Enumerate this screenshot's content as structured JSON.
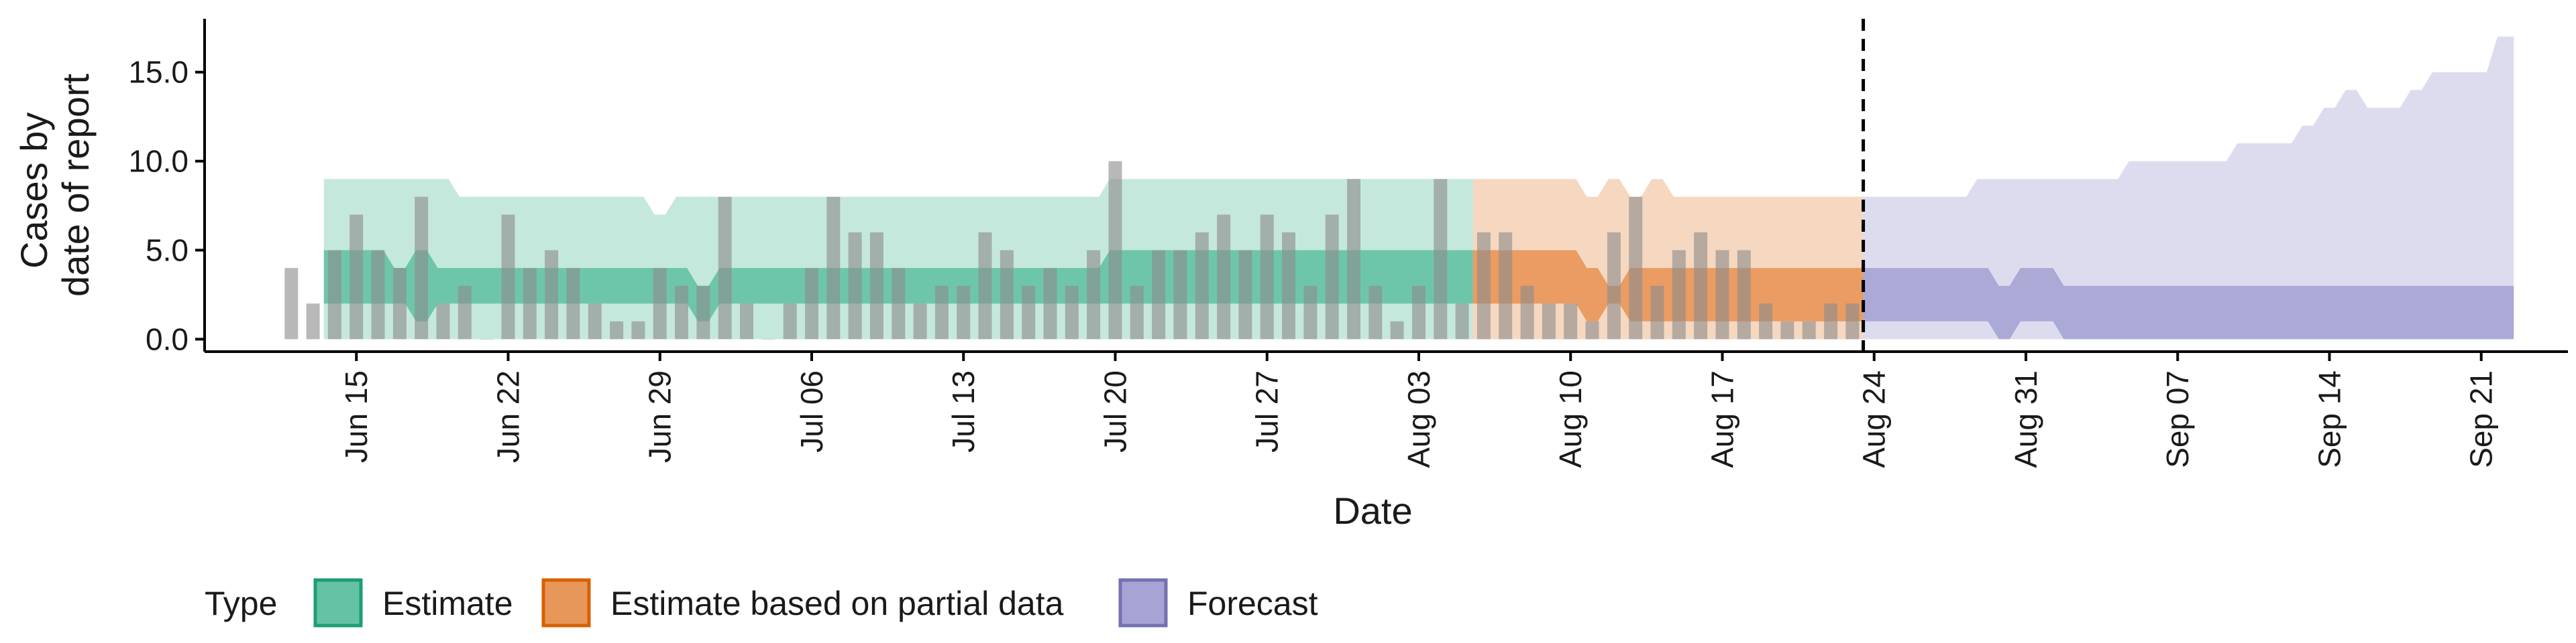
{
  "chart_data": {
    "type": "area",
    "xlabel": "Date",
    "ylabel": [
      "Cases by",
      "date of report"
    ],
    "x_range": [
      "2021-06-08",
      "2021-09-25"
    ],
    "ylim": [
      -0.7,
      18
    ],
    "y_ticks": [
      {
        "value": 0,
        "label": "0.0"
      },
      {
        "value": 5,
        "label": "5.0"
      },
      {
        "value": 10,
        "label": "10.0"
      },
      {
        "value": 15,
        "label": "15.0"
      }
    ],
    "x_ticks": [
      {
        "date": "2021-06-15",
        "label": "Jun 15"
      },
      {
        "date": "2021-06-22",
        "label": "Jun 22"
      },
      {
        "date": "2021-06-29",
        "label": "Jun 29"
      },
      {
        "date": "2021-07-06",
        "label": "Jul 06"
      },
      {
        "date": "2021-07-13",
        "label": "Jul 13"
      },
      {
        "date": "2021-07-20",
        "label": "Jul 20"
      },
      {
        "date": "2021-07-27",
        "label": "Jul 27"
      },
      {
        "date": "2021-08-03",
        "label": "Aug 03"
      },
      {
        "date": "2021-08-10",
        "label": "Aug 10"
      },
      {
        "date": "2021-08-17",
        "label": "Aug 17"
      },
      {
        "date": "2021-08-24",
        "label": "Aug 24"
      },
      {
        "date": "2021-08-31",
        "label": "Aug 31"
      },
      {
        "date": "2021-09-07",
        "label": "Sep 07"
      },
      {
        "date": "2021-09-14",
        "label": "Sep 14"
      },
      {
        "date": "2021-09-21",
        "label": "Sep 21"
      }
    ],
    "grid": false,
    "legend_position": "bottom-left",
    "legend": {
      "title": "Type",
      "entries": [
        {
          "label": "Estimate",
          "fill": "#66c2a5",
          "border": "#1b9e77"
        },
        {
          "label": "Estimate based on partial data",
          "fill": "#e8975a",
          "border": "#d95f02"
        },
        {
          "label": "Forecast",
          "fill": "#a6a4d4",
          "border": "#7570b3"
        }
      ]
    },
    "vline_date": "2021-08-23",
    "bars": {
      "color": "#8c8c8c",
      "dates": [
        "2021-06-12",
        "2021-06-13",
        "2021-06-14",
        "2021-06-15",
        "2021-06-16",
        "2021-06-17",
        "2021-06-18",
        "2021-06-19",
        "2021-06-20",
        "2021-06-21",
        "2021-06-22",
        "2021-06-23",
        "2021-06-24",
        "2021-06-25",
        "2021-06-26",
        "2021-06-27",
        "2021-06-28",
        "2021-06-29",
        "2021-06-30",
        "2021-07-01",
        "2021-07-02",
        "2021-07-03",
        "2021-07-04",
        "2021-07-05",
        "2021-07-06",
        "2021-07-07",
        "2021-07-08",
        "2021-07-09",
        "2021-07-10",
        "2021-07-11",
        "2021-07-12",
        "2021-07-13",
        "2021-07-14",
        "2021-07-15",
        "2021-07-16",
        "2021-07-17",
        "2021-07-18",
        "2021-07-19",
        "2021-07-20",
        "2021-07-21",
        "2021-07-22",
        "2021-07-23",
        "2021-07-24",
        "2021-07-25",
        "2021-07-26",
        "2021-07-27",
        "2021-07-28",
        "2021-07-29",
        "2021-07-30",
        "2021-07-31",
        "2021-08-01",
        "2021-08-02",
        "2021-08-03",
        "2021-08-04",
        "2021-08-05",
        "2021-08-06",
        "2021-08-07",
        "2021-08-08",
        "2021-08-09",
        "2021-08-10",
        "2021-08-11",
        "2021-08-12",
        "2021-08-13",
        "2021-08-14",
        "2021-08-15",
        "2021-08-16",
        "2021-08-17",
        "2021-08-18",
        "2021-08-19",
        "2021-08-20",
        "2021-08-21",
        "2021-08-22",
        "2021-08-23"
      ],
      "values": [
        4,
        2,
        5,
        7,
        5,
        4,
        8,
        2,
        3,
        0,
        7,
        4,
        5,
        4,
        2,
        1,
        1,
        4,
        3,
        3,
        8,
        2,
        0,
        2,
        4,
        8,
        6,
        6,
        4,
        2,
        3,
        3,
        6,
        5,
        3,
        4,
        3,
        5,
        10,
        3,
        5,
        5,
        6,
        7,
        5,
        7,
        6,
        3,
        7,
        9,
        3,
        1,
        3,
        9,
        2,
        6,
        6,
        3,
        2,
        2,
        1,
        6,
        8,
        3,
        5,
        6,
        5,
        5,
        2,
        1,
        1,
        2,
        2
      ]
    },
    "series": [
      {
        "name": "Estimate",
        "fill": "#66c2a5",
        "dates": [
          "2021-06-14",
          "2021-06-15",
          "2021-06-16",
          "2021-06-17",
          "2021-06-18",
          "2021-06-19",
          "2021-06-20",
          "2021-06-21",
          "2021-06-22",
          "2021-06-23",
          "2021-06-24",
          "2021-06-25",
          "2021-06-26",
          "2021-06-27",
          "2021-06-28",
          "2021-06-29",
          "2021-06-30",
          "2021-07-01",
          "2021-07-02",
          "2021-07-03",
          "2021-07-04",
          "2021-07-05",
          "2021-07-06",
          "2021-07-07",
          "2021-07-08",
          "2021-07-09",
          "2021-07-10",
          "2021-07-11",
          "2021-07-12",
          "2021-07-13",
          "2021-07-14",
          "2021-07-15",
          "2021-07-16",
          "2021-07-17",
          "2021-07-18",
          "2021-07-19",
          "2021-07-20",
          "2021-07-21",
          "2021-07-22",
          "2021-07-23",
          "2021-07-24",
          "2021-07-25",
          "2021-07-26",
          "2021-07-27",
          "2021-07-28",
          "2021-07-29",
          "2021-07-30",
          "2021-07-31",
          "2021-08-01",
          "2021-08-02",
          "2021-08-03",
          "2021-08-04",
          "2021-08-05"
        ],
        "lower_90": [
          0,
          0,
          0,
          0,
          0,
          0,
          0,
          0,
          0,
          0,
          0,
          0,
          0,
          0,
          0,
          0,
          0,
          0,
          0,
          0,
          0,
          0,
          0,
          0,
          0,
          0,
          0,
          0,
          0,
          0,
          0,
          0,
          0,
          0,
          0,
          0,
          0,
          0,
          0,
          0,
          0,
          0,
          0,
          0,
          0,
          0,
          0,
          0,
          0,
          0,
          0,
          0,
          0
        ],
        "upper_90": [
          9,
          9,
          9,
          9,
          9,
          9,
          8,
          8,
          8,
          8,
          8,
          8,
          8,
          8,
          8,
          7,
          8,
          8,
          8,
          8,
          8,
          8,
          8,
          8,
          8,
          8,
          8,
          8,
          8,
          8,
          8,
          8,
          8,
          8,
          8,
          8,
          9,
          9,
          9,
          9,
          9,
          9,
          9,
          9,
          9,
          9,
          9,
          9,
          9,
          9,
          9,
          9,
          9
        ],
        "lower_50": [
          2,
          2,
          2,
          2,
          1,
          2,
          2,
          2,
          2,
          2,
          2,
          2,
          2,
          2,
          2,
          2,
          2,
          1,
          2,
          2,
          2,
          2,
          2,
          2,
          2,
          2,
          2,
          2,
          2,
          2,
          2,
          2,
          2,
          2,
          2,
          2,
          2,
          2,
          2,
          2,
          2,
          2,
          2,
          2,
          2,
          2,
          2,
          2,
          2,
          2,
          2,
          2,
          2
        ],
        "upper_50": [
          5,
          5,
          5,
          4,
          5,
          4,
          4,
          4,
          4,
          4,
          4,
          4,
          4,
          4,
          4,
          4,
          4,
          3,
          4,
          4,
          4,
          4,
          4,
          4,
          4,
          4,
          4,
          4,
          4,
          4,
          4,
          4,
          4,
          4,
          4,
          4,
          5,
          5,
          5,
          5,
          5,
          5,
          5,
          5,
          5,
          5,
          5,
          5,
          5,
          5,
          5,
          5,
          5
        ]
      },
      {
        "name": "Estimate based on partial data",
        "fill": "#e8975a",
        "dates": [
          "2021-08-06",
          "2021-08-07",
          "2021-08-08",
          "2021-08-09",
          "2021-08-10",
          "2021-08-11",
          "2021-08-12",
          "2021-08-13",
          "2021-08-14",
          "2021-08-15",
          "2021-08-16",
          "2021-08-17",
          "2021-08-18",
          "2021-08-19",
          "2021-08-20",
          "2021-08-21",
          "2021-08-22",
          "2021-08-23"
        ],
        "lower_90": [
          0,
          0,
          0,
          0,
          0,
          0,
          0,
          0,
          0,
          0,
          0,
          0,
          0,
          0,
          0,
          0,
          0,
          0
        ],
        "upper_90": [
          9,
          9,
          9,
          9,
          9,
          8,
          9,
          8,
          9,
          8,
          8,
          8,
          8,
          8,
          8,
          8,
          8,
          8
        ],
        "lower_50": [
          2,
          2,
          2,
          2,
          2,
          1,
          2,
          1,
          1,
          1,
          1,
          1,
          1,
          1,
          1,
          1,
          1,
          1
        ],
        "upper_50": [
          5,
          5,
          5,
          5,
          5,
          4,
          3,
          4,
          4,
          4,
          4,
          4,
          4,
          4,
          4,
          4,
          4,
          4
        ]
      },
      {
        "name": "Forecast",
        "fill": "#a6a4d4",
        "dates": [
          "2021-08-24",
          "2021-08-25",
          "2021-08-26",
          "2021-08-27",
          "2021-08-28",
          "2021-08-29",
          "2021-08-30",
          "2021-08-31",
          "2021-09-01",
          "2021-09-02",
          "2021-09-03",
          "2021-09-04",
          "2021-09-05",
          "2021-09-06",
          "2021-09-07",
          "2021-09-08",
          "2021-09-09",
          "2021-09-10",
          "2021-09-11",
          "2021-09-12",
          "2021-09-13",
          "2021-09-14",
          "2021-09-15",
          "2021-09-16",
          "2021-09-17",
          "2021-09-18",
          "2021-09-19",
          "2021-09-20",
          "2021-09-21",
          "2021-09-22"
        ],
        "lower_90": [
          0,
          0,
          0,
          0,
          0,
          0,
          0,
          0,
          0,
          0,
          0,
          0,
          0,
          0,
          0,
          0,
          0,
          0,
          0,
          0,
          0,
          0,
          0,
          0,
          0,
          0,
          0,
          0,
          0,
          0
        ],
        "upper_90": [
          8,
          8,
          8,
          8,
          8,
          9,
          9,
          9,
          9,
          9,
          9,
          9,
          10,
          10,
          10,
          10,
          10,
          11,
          11,
          11,
          12,
          13,
          14,
          13,
          13,
          14,
          15,
          15,
          15,
          17
        ],
        "lower_50": [
          1,
          1,
          1,
          1,
          1,
          1,
          0,
          1,
          1,
          0,
          0,
          0,
          0,
          0,
          0,
          0,
          0,
          0,
          0,
          0,
          0,
          0,
          0,
          0,
          0,
          0,
          0,
          0,
          0,
          0
        ],
        "upper_50": [
          4,
          4,
          4,
          4,
          4,
          4,
          3,
          4,
          4,
          3,
          3,
          3,
          3,
          3,
          3,
          3,
          3,
          3,
          3,
          3,
          3,
          3,
          3,
          3,
          3,
          3,
          3,
          3,
          3,
          3
        ]
      }
    ]
  }
}
